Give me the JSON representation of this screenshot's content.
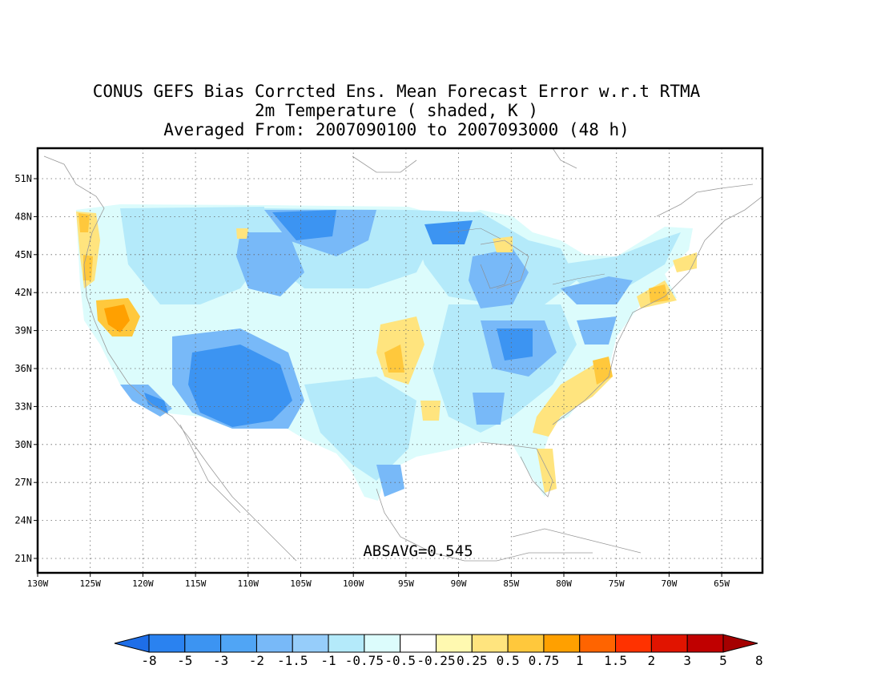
{
  "title": {
    "line1": "CONUS GEFS Bias Corrcted Ens. Mean Forecast Error w.r.t RTMA",
    "line2": "2m Temperature ( shaded, K )",
    "line3": "Averaged From: 2007090100 to 2007093000 (48 h)"
  },
  "annotation": "ABSAVG=0.545",
  "axes": {
    "lat_labels": [
      "51N",
      "48N",
      "45N",
      "42N",
      "39N",
      "36N",
      "33N",
      "30N",
      "27N",
      "24N",
      "21N"
    ],
    "lon_labels": [
      "130W",
      "125W",
      "120W",
      "115W",
      "110W",
      "105W",
      "100W",
      "95W",
      "90W",
      "85W",
      "80W",
      "75W",
      "70W",
      "65W"
    ]
  },
  "colorbar": {
    "labels": [
      "-8",
      "-5",
      "-3",
      "-2",
      "-1.5",
      "-1",
      "-0.75",
      "-0.5",
      "-0.25",
      "0.25",
      "0.5",
      "0.75",
      "1",
      "1.5",
      "2",
      "3",
      "5",
      "8"
    ],
    "colors": [
      "#1e6ee8",
      "#2a82f0",
      "#3c94f2",
      "#50a5f5",
      "#78b9f8",
      "#96cdfa",
      "#b4eafa",
      "#dcfcfc",
      "#ffffff",
      "#fff9b0",
      "#ffe47e",
      "#ffc83c",
      "#ffa000",
      "#ff6400",
      "#ff3200",
      "#e11400",
      "#c00000",
      "#a50000"
    ]
  },
  "map_colors": {
    "strong_cool": "#3c94f2",
    "cool": "#78b9f8",
    "light_cool": "#b4eafa",
    "pale_cool": "#dcfcfc",
    "light_warm": "#fff9b0",
    "warm": "#ffe47e",
    "orange": "#ffc83c",
    "deep_orange": "#ffa000"
  }
}
